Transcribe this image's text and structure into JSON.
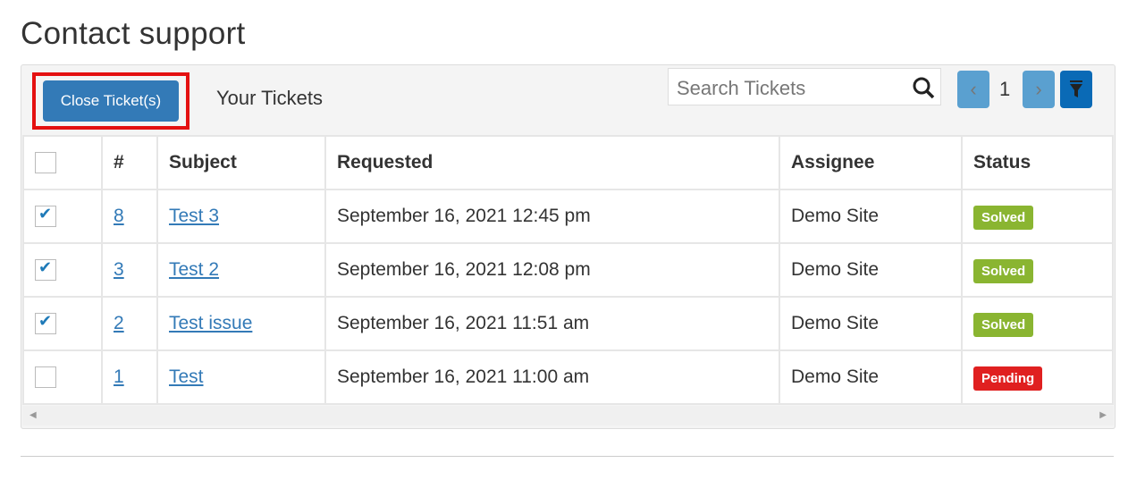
{
  "page_title": "Contact support",
  "toolbar": {
    "close_label": "Close Ticket(s)",
    "section_title": "Your Tickets",
    "search_placeholder": "Search Tickets",
    "page": "1"
  },
  "table": {
    "headers": [
      "#",
      "Subject",
      "Requested",
      "Assignee",
      "Status"
    ],
    "rows": [
      {
        "checked": true,
        "id": "8",
        "subject": "Test 3",
        "requested": "September 16, 2021 12:45 pm",
        "assignee": "Demo Site",
        "status": "Solved"
      },
      {
        "checked": true,
        "id": "3",
        "subject": "Test 2",
        "requested": "September 16, 2021 12:08 pm",
        "assignee": "Demo Site",
        "status": "Solved"
      },
      {
        "checked": true,
        "id": "2",
        "subject": "Test issue",
        "requested": "September 16, 2021 11:51 am",
        "assignee": "Demo Site",
        "status": "Solved"
      },
      {
        "checked": false,
        "id": "1",
        "subject": "Test",
        "requested": "September 16, 2021 11:00 am",
        "assignee": "Demo Site",
        "status": "Pending"
      }
    ]
  },
  "colors": {
    "Solved": "#8ab531",
    "Pending": "#e02020",
    "accent": "#337ab7"
  }
}
